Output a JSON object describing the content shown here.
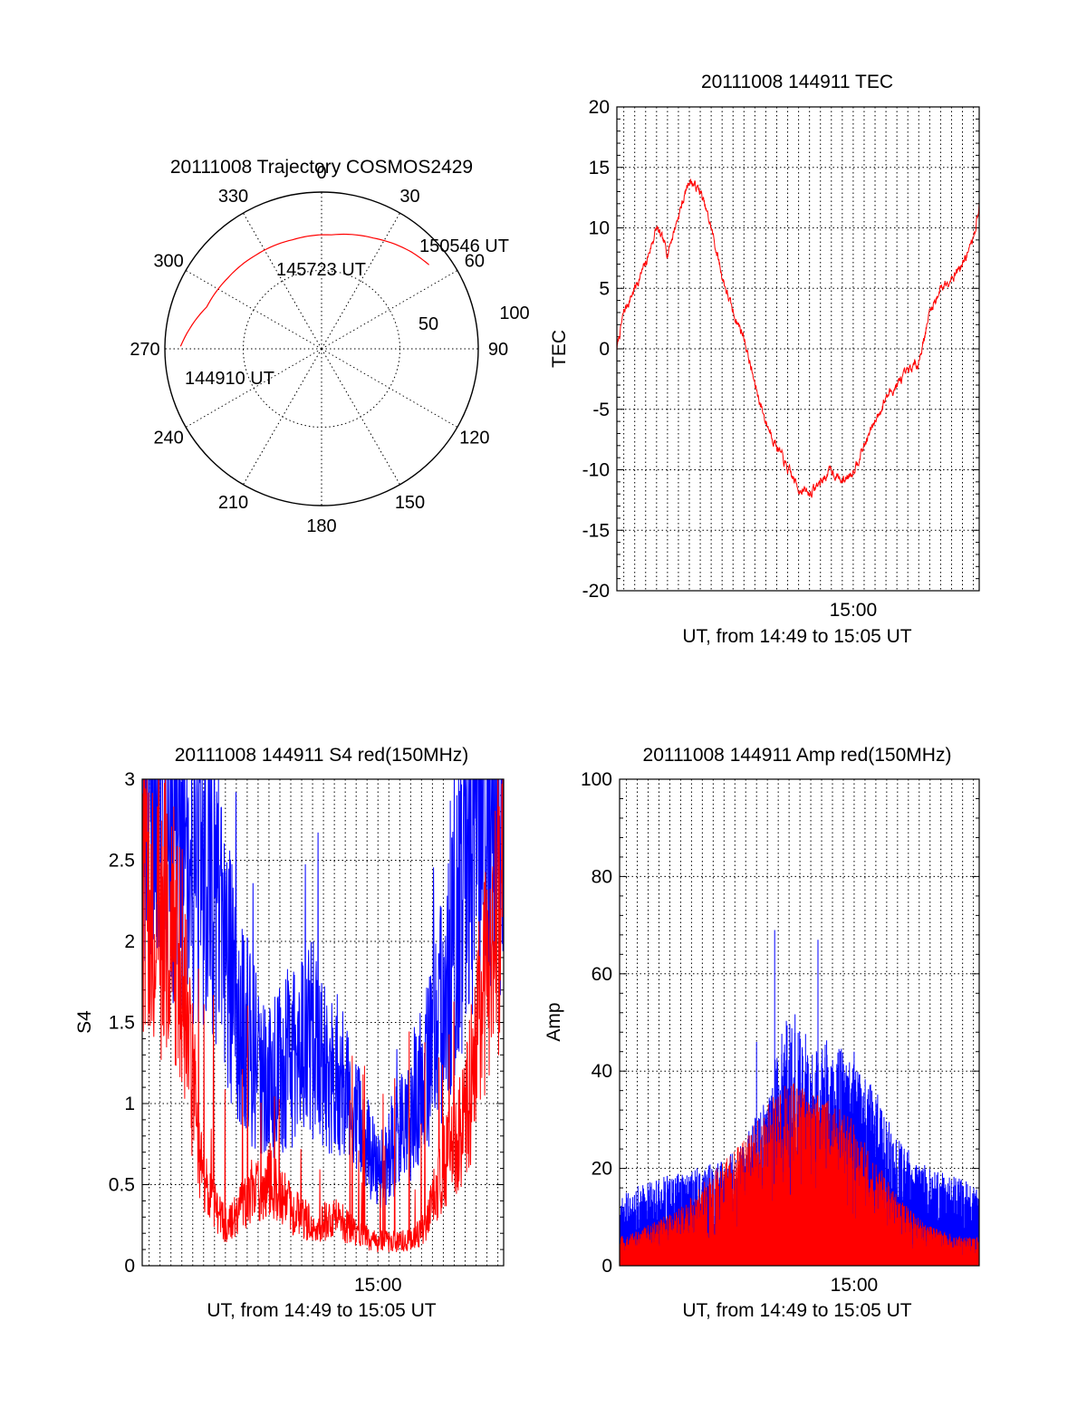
{
  "chart_data": [
    {
      "type": "polar",
      "title": "20111008 Trajectory COSMOS2429",
      "angle_labels": [
        "0",
        "30",
        "60",
        "90",
        "120",
        "150",
        "180",
        "210",
        "240",
        "270",
        "300",
        "330"
      ],
      "radius_labels": [
        "50",
        "100"
      ],
      "rlim": [
        0,
        100
      ],
      "grid": true,
      "series": [
        {
          "color": "#ff0000",
          "points": [
            {
              "az": 271,
              "r": 90
            },
            {
              "az": 290,
              "r": 78
            },
            {
              "az": 307,
              "r": 75
            },
            {
              "az": 325,
              "r": 73
            },
            {
              "az": 345,
              "r": 72
            },
            {
              "az": 5,
              "r": 73
            },
            {
              "az": 25,
              "r": 78
            },
            {
              "az": 42,
              "r": 84
            },
            {
              "az": 52,
              "r": 87
            }
          ]
        }
      ],
      "annotations": [
        {
          "text": "150546 UT",
          "az": 52,
          "r": 87
        },
        {
          "text": "145723 UT",
          "az": 350,
          "r": 50
        },
        {
          "text": "144910 UT",
          "az": 263,
          "r": 86
        }
      ]
    },
    {
      "type": "line",
      "title": "20111008 144911 TEC",
      "xlabel": "UT, from 14:49 to 15:05 UT",
      "ylabel": "TEC",
      "xlim": [
        "14:49:11",
        "15:05:46"
      ],
      "ylim": [
        -20,
        20
      ],
      "yticks": [
        -20,
        -15,
        -10,
        -5,
        0,
        5,
        10,
        15,
        20
      ],
      "xtick_labels": [
        {
          "x": "15:00",
          "label": "15:00"
        }
      ],
      "grid": true,
      "series": [
        {
          "color": "#ff0000",
          "x": [
            "14:49:11",
            "14:49:30",
            "14:50:00",
            "14:50:30",
            "14:51:00",
            "14:51:30",
            "14:52:00",
            "14:52:30",
            "14:53:00",
            "14:53:30",
            "14:54:00",
            "14:54:30",
            "14:55:00",
            "14:55:30",
            "14:56:00",
            "14:56:30",
            "14:57:00",
            "14:57:30",
            "14:58:00",
            "14:58:30",
            "14:59:00",
            "14:59:30",
            "15:00:00",
            "15:00:30",
            "15:01:00",
            "15:01:30",
            "15:02:00",
            "15:02:30",
            "15:03:00",
            "15:03:30",
            "15:04:00",
            "15:04:30",
            "15:05:00",
            "15:05:30",
            "15:05:46"
          ],
          "values": [
            0,
            3,
            5,
            7,
            10,
            8,
            11,
            14,
            13,
            10,
            6,
            3,
            1,
            -3,
            -6,
            -8,
            -10,
            -11.5,
            -12,
            -11,
            -10,
            -11,
            -10,
            -8,
            -6,
            -4,
            -3,
            -2,
            -1,
            3,
            5,
            6,
            7,
            9,
            12
          ]
        }
      ]
    },
    {
      "type": "line",
      "title": "20111008 144911 S4 red(150MHz)",
      "xlabel": "UT, from 14:49 to 15:05 UT",
      "ylabel": "S4",
      "xlim": [
        "14:49:11",
        "15:05:46"
      ],
      "ylim": [
        0,
        3
      ],
      "yticks": [
        0,
        0.5,
        1,
        1.5,
        2,
        2.5,
        3
      ],
      "ytick_labels": [
        "0",
        "0.5",
        "1",
        "1.5",
        "2",
        "2.5",
        "3"
      ],
      "xtick_labels": [
        {
          "x": "15:00",
          "label": "15:00"
        }
      ],
      "grid": true,
      "series": [
        {
          "color": "#0000ff",
          "x": [
            "14:49:11",
            "14:50:00",
            "14:51:00",
            "14:52:00",
            "14:53:00",
            "14:54:00",
            "14:55:00",
            "14:56:00",
            "14:57:00",
            "14:58:00",
            "14:59:00",
            "15:00:00",
            "15:01:00",
            "15:02:00",
            "15:03:00",
            "15:04:00",
            "15:05:00",
            "15:05:46"
          ],
          "values": [
            3,
            3,
            2.8,
            2.6,
            1.9,
            1.4,
            1.1,
            1.3,
            1.4,
            1.2,
            0.9,
            0.6,
            0.8,
            1.1,
            1.6,
            2.5,
            3,
            3
          ]
        },
        {
          "color": "#ff0000",
          "x": [
            "14:49:11",
            "14:50:00",
            "14:51:00",
            "14:52:00",
            "14:53:00",
            "14:54:00",
            "14:55:00",
            "14:56:00",
            "14:57:00",
            "14:58:00",
            "14:59:00",
            "15:00:00",
            "15:01:00",
            "15:02:00",
            "15:03:00",
            "15:04:00",
            "15:05:00",
            "15:05:46"
          ],
          "values": [
            2.5,
            2.3,
            1.8,
            0.5,
            0.25,
            0.4,
            0.55,
            0.35,
            0.25,
            0.3,
            0.2,
            0.15,
            0.15,
            0.2,
            0.6,
            0.9,
            1.8,
            2.5
          ]
        }
      ]
    },
    {
      "type": "line",
      "title": "20111008 144911 Amp red(150MHz)",
      "xlabel": "UT, from 14:49 to 15:05 UT",
      "ylabel": "Amp",
      "xlim": [
        "14:49:11",
        "15:05:46"
      ],
      "ylim": [
        0,
        100
      ],
      "yticks": [
        0,
        20,
        40,
        60,
        80,
        100
      ],
      "xtick_labels": [
        {
          "x": "15:00",
          "label": "15:00"
        }
      ],
      "grid": true,
      "series": [
        {
          "color": "#0000ff",
          "x": [
            "14:49:11",
            "14:50:00",
            "14:51:00",
            "14:52:00",
            "14:53:00",
            "14:54:00",
            "14:55:00",
            "14:56:00",
            "14:57:00",
            "14:58:00",
            "14:59:00",
            "15:00:00",
            "15:01:00",
            "15:02:00",
            "15:03:00",
            "15:04:00",
            "15:05:00",
            "15:05:46"
          ],
          "values": [
            12,
            14,
            15,
            16,
            17,
            18,
            22,
            30,
            45,
            38,
            40,
            35,
            30,
            22,
            18,
            16,
            15,
            14
          ],
          "peaks": [
            {
              "x": "14:56:20",
              "value": 69
            },
            {
              "x": "14:58:20",
              "value": 67
            },
            {
              "x": "14:55:30",
              "value": 46
            },
            {
              "x": "15:00:00",
              "value": 44
            }
          ]
        },
        {
          "color": "#ff0000",
          "x": [
            "14:49:11",
            "14:50:00",
            "14:51:00",
            "14:52:00",
            "14:53:00",
            "14:54:00",
            "14:55:00",
            "14:56:00",
            "14:57:00",
            "14:58:00",
            "14:59:00",
            "15:00:00",
            "15:01:00",
            "15:02:00",
            "15:03:00",
            "15:04:00",
            "15:05:00",
            "15:05:46"
          ],
          "values": [
            5,
            6,
            8,
            10,
            14,
            18,
            22,
            28,
            32,
            30,
            28,
            25,
            18,
            12,
            8,
            6,
            5,
            5
          ]
        }
      ]
    }
  ]
}
